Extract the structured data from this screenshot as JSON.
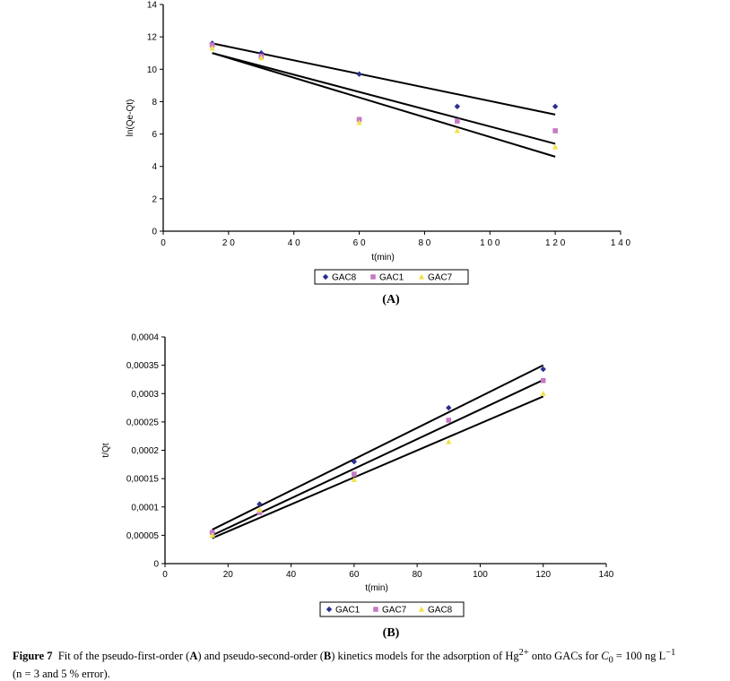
{
  "chart_data": [
    {
      "type": "scatter",
      "panel_label": "(A)",
      "xlabel": "t(min)",
      "ylabel": "ln(Qe-Qt)",
      "xlim": [
        0,
        140
      ],
      "ylim": [
        0,
        14
      ],
      "x_ticks": [
        "0",
        "2 0",
        "4 0",
        "6 0",
        "8 0",
        "1 0 0",
        "1 2 0",
        "1 4 0"
      ],
      "y_ticks": [
        "0",
        "2",
        "4",
        "6",
        "8",
        "10",
        "12",
        "14"
      ],
      "grid": false,
      "legend_position": "bottom",
      "x": [
        15,
        30,
        60,
        90,
        120
      ],
      "series": [
        {
          "name": "GAC8",
          "marker": "diamond",
          "color": "#2b2f8f",
          "values": [
            11.6,
            11.0,
            9.7,
            7.7,
            7.7
          ],
          "fit": [
            11.6,
            7.2
          ]
        },
        {
          "name": "GAC1",
          "marker": "square",
          "color": "#c67ac6",
          "values": [
            11.5,
            10.8,
            6.9,
            6.8,
            6.2
          ],
          "fit": [
            11.0,
            5.4
          ]
        },
        {
          "name": "GAC7",
          "marker": "triangle",
          "color": "#f2e24c",
          "values": [
            11.3,
            10.7,
            6.7,
            6.2,
            5.2
          ],
          "fit": [
            11.0,
            4.6
          ]
        }
      ]
    },
    {
      "type": "scatter",
      "panel_label": "(B)",
      "xlabel": "t(min)",
      "ylabel": "t/Qt",
      "xlim": [
        0,
        140
      ],
      "ylim": [
        0,
        0.0004
      ],
      "x_ticks": [
        "0",
        "20",
        "40",
        "60",
        "80",
        "100",
        "120",
        "140"
      ],
      "y_ticks": [
        "0",
        "0,00005",
        "0,0001",
        "0,00015",
        "0,0002",
        "0,00025",
        "0,0003",
        "0,00035",
        "0,0004"
      ],
      "grid": false,
      "legend_position": "bottom",
      "x": [
        15,
        30,
        60,
        90,
        120
      ],
      "series": [
        {
          "name": "GAC1",
          "marker": "diamond",
          "color": "#2b2f8f",
          "values": [
            5.5e-05,
            0.000105,
            0.00018,
            0.000275,
            0.000343
          ],
          "fit": [
            6e-05,
            0.00035
          ]
        },
        {
          "name": "GAC7",
          "marker": "square",
          "color": "#c67ac6",
          "values": [
            5.5e-05,
            9e-05,
            0.000158,
            0.000253,
            0.000323
          ],
          "fit": [
            5e-05,
            0.000324
          ]
        },
        {
          "name": "GAC8",
          "marker": "triangle",
          "color": "#f2e24c",
          "values": [
            5e-05,
            9.5e-05,
            0.000148,
            0.000215,
            0.0003
          ],
          "fit": [
            4.5e-05,
            0.000295
          ]
        }
      ]
    }
  ],
  "caption": {
    "figure_label": "Figure 7",
    "text_1": "Fit of the pseudo-first-order (",
    "bold_a": "A",
    "text_2": ") and pseudo-second-order (",
    "bold_b": "B",
    "text_3": ") kinetics models for the adsorption of Hg",
    "superscript": "2+",
    "text_4": " onto GACs for ",
    "c_symbol": "C",
    "c_subscript": "0",
    "text_5": " = 100 ng L",
    "unit_superscript": "−1",
    "line_2": "(n = 3 and 5 % error)."
  }
}
